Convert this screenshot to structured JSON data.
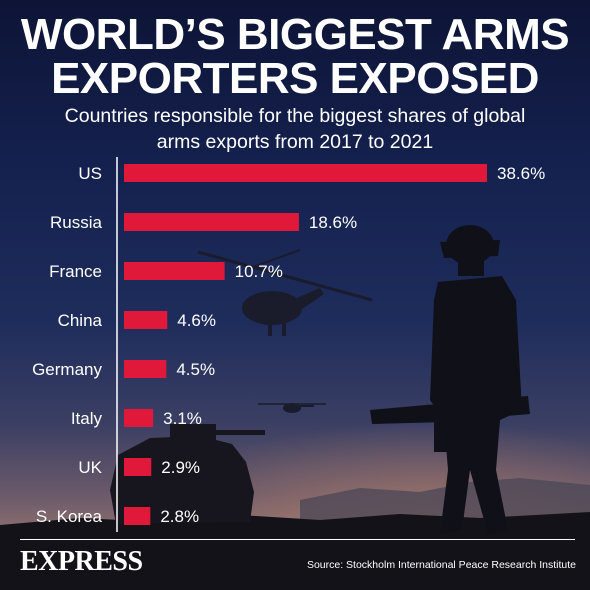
{
  "header": {
    "title_line1": "WORLD’S BIGGEST ARMS",
    "title_line2": "EXPORTERS EXPOSED",
    "subtitle_line1": "Countries responsible for the biggest shares of global",
    "subtitle_line2": "arms exports from 2017 to 2021"
  },
  "chart_data": {
    "type": "bar",
    "orientation": "horizontal",
    "categories": [
      "US",
      "Russia",
      "France",
      "China",
      "Germany",
      "Italy",
      "UK",
      "S. Korea"
    ],
    "values": [
      38.6,
      18.6,
      10.7,
      4.6,
      4.5,
      3.1,
      2.9,
      2.8
    ],
    "data_labels": [
      "38.6%",
      "18.6%",
      "10.7%",
      "4.6%",
      "4.5%",
      "3.1%",
      "2.9%",
      "2.8%"
    ],
    "unit": "%",
    "xlim": [
      0,
      38.6
    ],
    "grid": false,
    "legend": "none",
    "bar_color": "#e0193a"
  },
  "footer": {
    "brand": "EXPRESS",
    "source": "Source: Stockholm International Peace Research Institute"
  },
  "colors": {
    "text": "#ffffff",
    "bar": "#e0193a",
    "axis": "#ffffff"
  }
}
